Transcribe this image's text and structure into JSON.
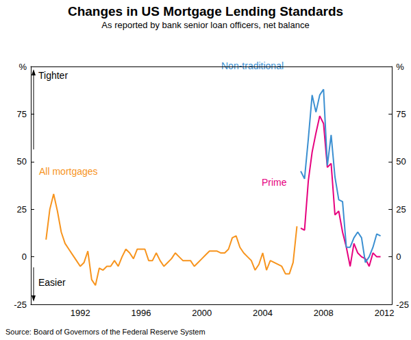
{
  "chart_data": {
    "type": "line",
    "title": "Changes in US Mortgage Lending Standards",
    "subtitle": "As reported by bank senior loan officers, net balance",
    "source": "Source: Board of Governors of the Federal Reserve System",
    "annotations": [
      "Tighter",
      "Easier"
    ],
    "xlim": [
      1989.25,
      2013
    ],
    "xticks": [
      {
        "value": 1992.5,
        "label": "1992"
      },
      {
        "value": 1996.5,
        "label": "1996"
      },
      {
        "value": 2000.5,
        "label": "2000"
      },
      {
        "value": 2004.5,
        "label": "2004"
      },
      {
        "value": 2008.5,
        "label": "2008"
      },
      {
        "value": 2012.5,
        "label": "2012"
      }
    ],
    "ylim": [
      -25,
      100
    ],
    "yticks": [
      -25,
      0,
      25,
      50,
      75,
      {
        "value": 100,
        "label": "%"
      }
    ],
    "grid": false,
    "legend": false,
    "series": [
      {
        "name": "All mortgages",
        "color": "#f7941d",
        "x": [
          1990.25,
          1990.5,
          1990.75,
          1991,
          1991.25,
          1991.5,
          1991.75,
          1992,
          1992.25,
          1992.5,
          1992.75,
          1993,
          1993.25,
          1993.5,
          1993.75,
          1994,
          1994.25,
          1994.5,
          1994.75,
          1995,
          1995.25,
          1995.5,
          1995.75,
          1996,
          1996.25,
          1996.5,
          1996.75,
          1997,
          1997.25,
          1997.5,
          1997.75,
          1998,
          1998.25,
          1998.5,
          1998.75,
          1999,
          1999.25,
          1999.5,
          1999.75,
          2000,
          2000.25,
          2000.5,
          2000.75,
          2001,
          2001.25,
          2001.5,
          2001.75,
          2002,
          2002.25,
          2002.5,
          2002.75,
          2003,
          2003.25,
          2003.5,
          2003.75,
          2004,
          2004.25,
          2004.5,
          2004.75,
          2005,
          2005.25,
          2005.5,
          2005.75,
          2006,
          2006.25,
          2006.5,
          2006.75
        ],
        "values": [
          9,
          25,
          33,
          24,
          13,
          7,
          4,
          1,
          -2,
          -5,
          -3,
          3,
          -12,
          -15,
          -6,
          -7,
          -5,
          -5,
          -2,
          -5,
          0,
          4,
          2,
          -1,
          4,
          4,
          4,
          -2,
          -2,
          2,
          -2,
          -5,
          -3,
          -1,
          2,
          0,
          -2,
          -2,
          -2,
          -5,
          -3,
          -1,
          1,
          3,
          3,
          3,
          2,
          2,
          4,
          10,
          11,
          5,
          2,
          0,
          -2,
          -7,
          -4,
          2,
          -7,
          -2,
          -3,
          -4,
          -5,
          -9,
          -9,
          -3,
          16
        ]
      },
      {
        "name": "Prime",
        "color": "#e6007e",
        "x": [
          2007,
          2007.25,
          2007.5,
          2007.75,
          2008,
          2008.25,
          2008.5,
          2008.75,
          2009,
          2009.25,
          2009.5,
          2009.75,
          2010,
          2010.25,
          2010.5,
          2010.75,
          2011,
          2011.25,
          2011.5,
          2011.75,
          2012,
          2012.25
        ],
        "values": [
          15,
          14,
          40,
          55,
          65,
          74,
          70,
          47,
          49,
          22,
          24,
          13,
          5,
          -5,
          7,
          2,
          0,
          -1,
          -5,
          2,
          0,
          0
        ]
      },
      {
        "name": "Non-traditional",
        "color": "#3a8fd1",
        "x": [
          2007,
          2007.25,
          2007.5,
          2007.75,
          2008,
          2008.25,
          2008.5,
          2008.75,
          2009,
          2009.25,
          2009.5,
          2009.75,
          2010,
          2010.25,
          2010.5,
          2010.75,
          2011,
          2011.25,
          2011.5,
          2011.75,
          2012,
          2012.25
        ],
        "values": [
          45,
          41,
          62,
          85,
          76,
          85,
          88,
          48,
          64,
          42,
          30,
          29,
          5,
          5,
          10,
          13,
          10,
          -3,
          0,
          5,
          12,
          11
        ]
      }
    ]
  }
}
